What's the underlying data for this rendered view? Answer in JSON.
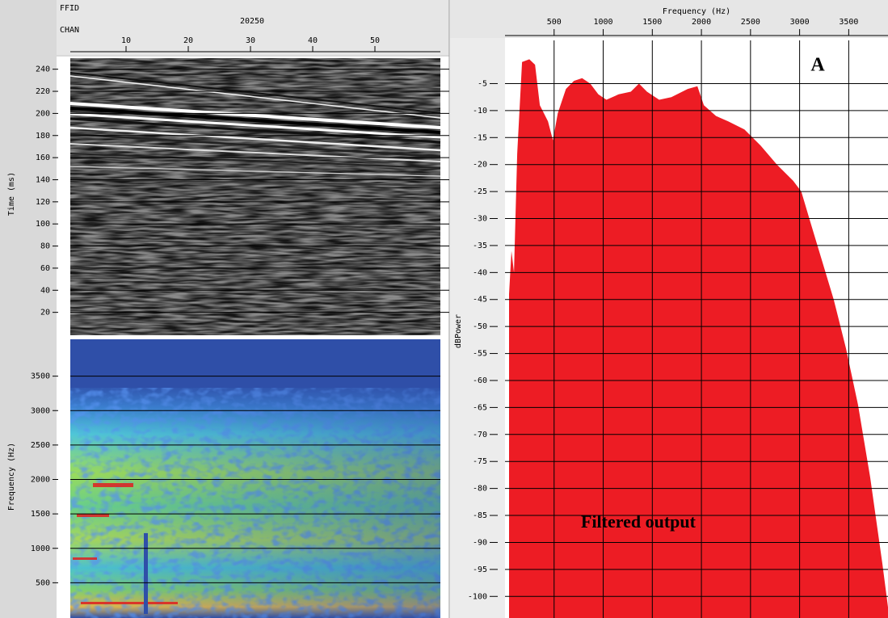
{
  "chart_data": [
    {
      "type": "seismic",
      "x_group_label": "FFID",
      "x_group_value": "20250",
      "xlabel": "CHAN",
      "xlim": [
        1,
        60
      ],
      "xticks": [
        10,
        20,
        30,
        40,
        50
      ],
      "ylabel": "Time (ms)",
      "ylim": [
        0,
        250
      ],
      "yticks": [
        20,
        40,
        60,
        80,
        100,
        120,
        140,
        160,
        180,
        200,
        220,
        240
      ],
      "grid": true
    },
    {
      "type": "spectrogram",
      "ylabel": "Frequency (Hz)",
      "ylim": [
        0,
        4000
      ],
      "yticks": [
        500,
        1000,
        1500,
        2000,
        2500,
        3000,
        3500
      ],
      "grid": true
    },
    {
      "type": "area",
      "xlabel": "Frequency (Hz)",
      "ylabel": "dBPower",
      "color": "#ed1c24",
      "grid": true,
      "xlim": [
        0,
        3900
      ],
      "ylim": [
        -104,
        3
      ],
      "xticks": [
        500,
        1000,
        1500,
        2000,
        2500,
        3000,
        3500
      ],
      "yticks": [
        -5,
        -10,
        -15,
        -20,
        -25,
        -30,
        -35,
        -40,
        -45,
        -50,
        -55,
        -60,
        -65,
        -70,
        -75,
        -80,
        -85,
        -90,
        -95,
        -100
      ],
      "x": [
        41,
        66,
        91,
        124,
        174,
        248,
        306,
        355,
        438,
        488,
        537,
        620,
        702,
        785,
        868,
        950,
        1033,
        1157,
        1281,
        1364,
        1446,
        1570,
        1694,
        1860,
        1959,
        2025,
        2149,
        2273,
        2438,
        2603,
        2769,
        2934,
        3017,
        3099,
        3223,
        3347,
        3471,
        3595,
        3719,
        3843,
        3900
      ],
      "values": [
        -44,
        -36,
        -40,
        -18,
        -1,
        -0.5,
        -1.5,
        -9,
        -12,
        -15.5,
        -10.5,
        -6,
        -4.5,
        -4,
        -5,
        -7,
        -8,
        -7,
        -6.5,
        -5,
        -6.5,
        -8,
        -7.5,
        -6,
        -5.5,
        -9,
        -11,
        -12,
        -13.5,
        -16.5,
        -20,
        -23,
        -25,
        -30,
        -37.5,
        -45,
        -54,
        -64.5,
        -78,
        -94,
        -102
      ],
      "annotations": [
        "A",
        "Filtered output"
      ]
    }
  ]
}
